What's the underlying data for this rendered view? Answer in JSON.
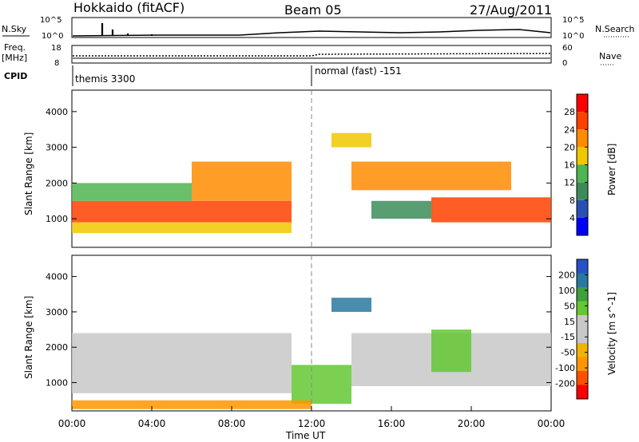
{
  "header": {
    "site": "Hokkaido (fitACF)",
    "beam": "Beam 05",
    "date": "27/Aug/2011"
  },
  "strips": {
    "nsky_label": "N.Sky",
    "nsearch_label": "N.Search",
    "nsky_ticks": [
      "10^5",
      "10^0"
    ],
    "nsearch_ticks": [
      "10^5",
      "10^0"
    ],
    "freq_label_1": "Freq.",
    "freq_label_2": "[MHz]",
    "freq_ticks": [
      "18",
      "8"
    ],
    "nave_label": "Nave",
    "nave_ticks": [
      "60",
      "0"
    ],
    "cpid_label": "CPID",
    "cpid_segments": [
      "themis 3300",
      "normal (fast) -151"
    ]
  },
  "colors": {
    "power": [
      "#0000ff",
      "#2850b4",
      "#3c8c5a",
      "#50b450",
      "#f0c800",
      "#ff8c00",
      "#ff4000",
      "#ff0000"
    ],
    "velocity": [
      "#ff0000",
      "#ff5000",
      "#ff9600",
      "#f0b400",
      "#c8c8c8",
      "#c8c8c8",
      "#64c832",
      "#3ca03c",
      "#2878a0",
      "#2850c8"
    ]
  },
  "chart_data": [
    {
      "type": "heatmap",
      "name": "Power panel",
      "xlabel": "",
      "ylabel": "Slant Range [km]",
      "xlim_hours": [
        0,
        24
      ],
      "ylim": [
        200,
        4600
      ],
      "y_ticks": [
        1000,
        2000,
        3000,
        4000
      ],
      "colorbar_title": "Power [dB]",
      "colorbar_ticks": [
        "4",
        "8",
        "12",
        "16",
        "20",
        "24",
        "28"
      ],
      "bands": [
        {
          "t0": 0,
          "t1": 11,
          "r0": 900,
          "r1": 1500,
          "level": 6
        },
        {
          "t0": 6,
          "t1": 11,
          "r0": 1500,
          "r1": 2600,
          "level": 5
        },
        {
          "t0": 0,
          "t1": 6,
          "r0": 1500,
          "r1": 2000,
          "level": 3
        },
        {
          "t0": 0,
          "t1": 11,
          "r0": 600,
          "r1": 900,
          "level": 4
        },
        {
          "t0": 14,
          "t1": 22,
          "r0": 1800,
          "r1": 2600,
          "level": 5
        },
        {
          "t0": 18,
          "t1": 24,
          "r0": 900,
          "r1": 1600,
          "level": 6
        },
        {
          "t0": 15,
          "t1": 18,
          "r0": 1000,
          "r1": 1500,
          "level": 2
        },
        {
          "t0": 13,
          "t1": 15,
          "r0": 3000,
          "r1": 3400,
          "level": 4
        }
      ]
    },
    {
      "type": "heatmap",
      "name": "Velocity panel",
      "xlabel": "Time UT",
      "ylabel": "Slant Range [km]",
      "xlim_hours": [
        0,
        24
      ],
      "ylim": [
        200,
        4600
      ],
      "y_ticks": [
        1000,
        2000,
        3000,
        4000
      ],
      "x_ticks": [
        "00:00",
        "04:00",
        "08:00",
        "12:00",
        "16:00",
        "20:00",
        "00:00"
      ],
      "colorbar_title": "Velocity [m s^-1]",
      "colorbar_ticks": [
        "-200",
        "-100",
        "-50",
        "-15",
        "15",
        "50",
        "100",
        "200"
      ],
      "bands": [
        {
          "t0": 0,
          "t1": 11,
          "r0": 700,
          "r1": 2400,
          "level": 4
        },
        {
          "t0": 11,
          "t1": 14,
          "r0": 400,
          "r1": 1500,
          "level": 6
        },
        {
          "t0": 14,
          "t1": 24,
          "r0": 900,
          "r1": 2400,
          "level": 4
        },
        {
          "t0": 18,
          "t1": 20,
          "r0": 1300,
          "r1": 2500,
          "level": 6
        },
        {
          "t0": 13,
          "t1": 15,
          "r0": 3000,
          "r1": 3400,
          "level": 8
        },
        {
          "t0": 0,
          "t1": 12,
          "r0": 250,
          "r1": 500,
          "level": 2
        }
      ]
    }
  ]
}
